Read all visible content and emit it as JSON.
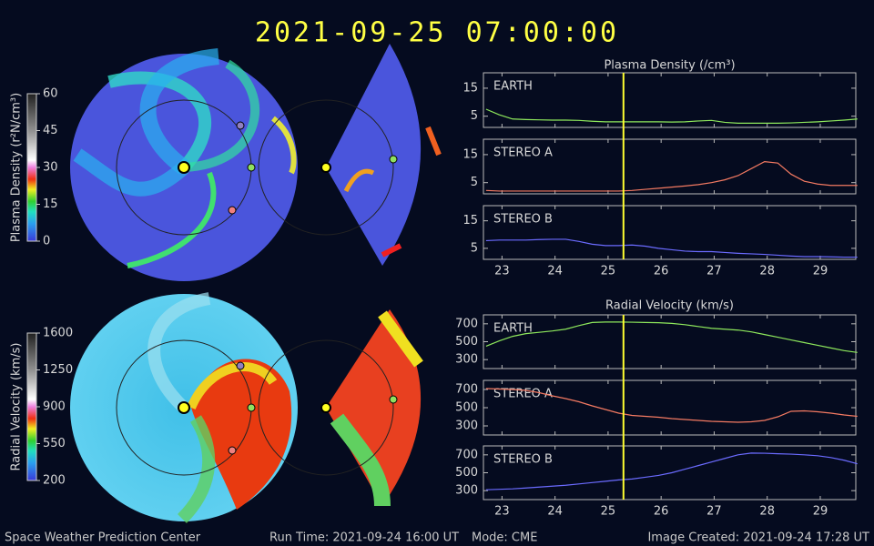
{
  "title": "2021-09-25 07:00:00",
  "footer": {
    "center": "Space Weather Prediction Center",
    "run_time": "Run Time: 2021-09-24 16:00 UT",
    "mode": "Mode: CME",
    "created": "Image Created: 2021-09-24 17:28 UT"
  },
  "colorbars": [
    {
      "label": "Plasma Density (r²N/cm³)",
      "lim": [
        0,
        60
      ],
      "ticks": [
        0,
        15,
        30,
        45,
        60
      ]
    },
    {
      "label": "Radial Velocity (km/s)",
      "lim": [
        200,
        1600
      ],
      "ticks": [
        200,
        550,
        900,
        1250,
        1600
      ]
    }
  ],
  "chart_data": [
    {
      "type": "line",
      "title": "Plasma Density (/cm³)",
      "x": [
        22.7,
        22.95,
        23.2,
        23.45,
        23.7,
        23.95,
        24.2,
        24.45,
        24.7,
        24.95,
        25.2,
        25.45,
        25.7,
        25.95,
        26.2,
        26.45,
        26.7,
        26.95,
        27.2,
        27.45,
        27.7,
        27.95,
        28.2,
        28.45,
        28.7,
        28.95,
        29.2,
        29.45,
        29.7
      ],
      "xlim": [
        22.65,
        29.67
      ],
      "xticks": [
        23,
        24,
        25,
        26,
        27,
        28,
        29
      ],
      "ylim": [
        1,
        20.5
      ],
      "yticks": [
        5,
        15
      ],
      "marker_x": 25.29,
      "series": [
        {
          "name": "EARTH",
          "color": "#8ee85c",
          "values": [
            7.5,
            5.5,
            4,
            3.8,
            3.7,
            3.6,
            3.6,
            3.5,
            3.2,
            3,
            3,
            3,
            3,
            3,
            2.9,
            3,
            3.3,
            3.5,
            2.8,
            2.5,
            2.5,
            2.5,
            2.5,
            2.6,
            2.8,
            3,
            3.3,
            3.6,
            4
          ]
        },
        {
          "name": "STEREO A",
          "color": "#f47a62",
          "values": [
            2.2,
            2,
            2,
            2,
            2,
            2,
            2,
            2,
            2,
            2,
            2,
            2.2,
            2.6,
            3,
            3.4,
            3.8,
            4.3,
            5,
            6,
            7.5,
            10,
            12.5,
            12,
            8,
            5.5,
            4.5,
            4,
            4,
            4
          ]
        },
        {
          "name": "STEREO B",
          "color": "#6b6bff",
          "values": [
            7.8,
            8,
            8,
            8,
            8.2,
            8.3,
            8.3,
            7.5,
            6.5,
            6,
            6,
            6.2,
            5.8,
            5,
            4.5,
            4,
            3.8,
            3.8,
            3.5,
            3.2,
            3,
            2.8,
            2.5,
            2.2,
            2,
            2,
            1.9,
            1.8,
            1.8
          ]
        }
      ]
    },
    {
      "type": "line",
      "title": "Radial Velocity (km/s)",
      "x": [
        22.7,
        22.95,
        23.2,
        23.45,
        23.7,
        23.95,
        24.2,
        24.45,
        24.7,
        24.95,
        25.2,
        25.45,
        25.7,
        25.95,
        26.2,
        26.45,
        26.7,
        26.95,
        27.2,
        27.45,
        27.7,
        27.95,
        28.2,
        28.45,
        28.7,
        28.95,
        29.2,
        29.45,
        29.7
      ],
      "xlim": [
        22.65,
        29.67
      ],
      "xticks": [
        23,
        24,
        25,
        26,
        27,
        28,
        29
      ],
      "ylim": [
        200,
        800
      ],
      "yticks": [
        300,
        500,
        700
      ],
      "marker_x": 25.29,
      "series": [
        {
          "name": "EARTH",
          "color": "#8ee85c",
          "values": [
            450,
            510,
            560,
            590,
            605,
            620,
            640,
            680,
            715,
            720,
            720,
            718,
            715,
            712,
            705,
            690,
            670,
            650,
            640,
            630,
            610,
            580,
            550,
            520,
            490,
            460,
            430,
            400,
            380
          ]
        },
        {
          "name": "STEREO A",
          "color": "#f47a62",
          "values": [
            710,
            705,
            700,
            690,
            665,
            630,
            600,
            565,
            520,
            480,
            440,
            415,
            405,
            395,
            380,
            370,
            360,
            350,
            345,
            340,
            345,
            360,
            400,
            460,
            465,
            455,
            440,
            420,
            405
          ]
        },
        {
          "name": "STEREO B",
          "color": "#6b6bff",
          "values": [
            310,
            315,
            320,
            330,
            340,
            350,
            360,
            375,
            390,
            405,
            420,
            430,
            450,
            470,
            500,
            540,
            580,
            620,
            660,
            700,
            720,
            718,
            712,
            708,
            700,
            690,
            670,
            640,
            600
          ]
        }
      ]
    }
  ]
}
